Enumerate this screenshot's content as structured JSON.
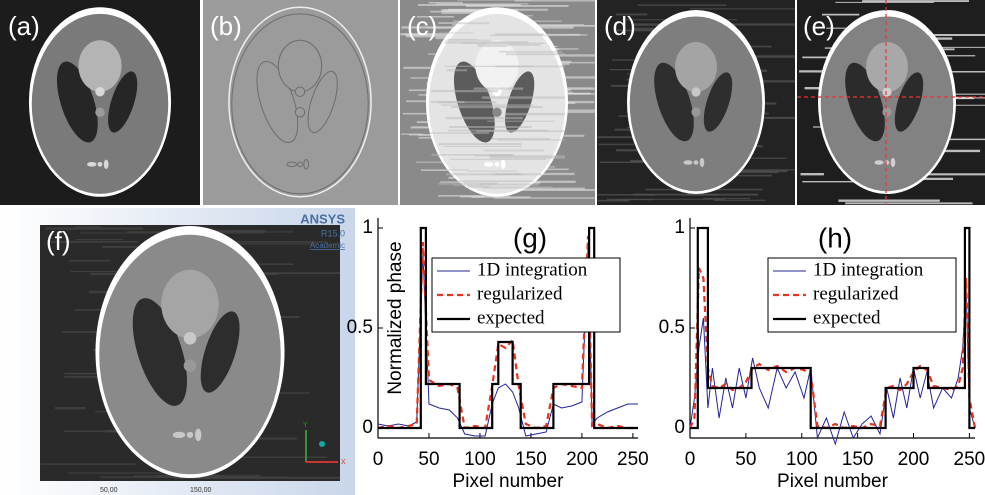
{
  "panels": [
    {
      "label": "(a)"
    },
    {
      "label": "(b)"
    },
    {
      "label": "(c)"
    },
    {
      "label": "(d)"
    },
    {
      "label": "(e)"
    },
    {
      "label": "(f)"
    }
  ],
  "panel_f": {
    "brand": "ANSYS",
    "version": "R15.0",
    "license": "Academic",
    "ruler": [
      "50,00",
      "150,00"
    ],
    "axes": [
      "Y",
      "X"
    ]
  },
  "chart_data": [
    {
      "type": "line",
      "title": "(g)",
      "xlabel": "Pixel number",
      "ylabel": "Normalized phase",
      "xlim": [
        0,
        255
      ],
      "ylim": [
        -0.05,
        1.05
      ],
      "xticks": [
        0,
        50,
        100,
        150,
        200,
        250
      ],
      "yticks": [
        0,
        0.5,
        1
      ],
      "legend": "upper center",
      "series": [
        {
          "name": "1D integration",
          "color": "#23239b",
          "style": "solid",
          "x": [
            0,
            10,
            20,
            30,
            38,
            44,
            50,
            60,
            70,
            78,
            85,
            95,
            105,
            112,
            118,
            125,
            132,
            138,
            145,
            155,
            165,
            172,
            180,
            190,
            200,
            206,
            210,
            215,
            225,
            235,
            245,
            255
          ],
          "values": [
            0.02,
            0.01,
            0.02,
            0.01,
            0.03,
            0.88,
            0.12,
            0.1,
            0.09,
            0.05,
            -0.03,
            -0.04,
            -0.04,
            0.12,
            0.2,
            0.22,
            0.18,
            0.1,
            -0.04,
            -0.03,
            -0.02,
            0.12,
            0.1,
            0.11,
            0.13,
            0.9,
            0.02,
            0.05,
            0.08,
            0.1,
            0.12,
            0.12
          ]
        },
        {
          "name": "regularized",
          "color": "#e8321e",
          "style": "dashed",
          "x": [
            0,
            10,
            20,
            30,
            38,
            44,
            50,
            60,
            70,
            78,
            85,
            95,
            105,
            112,
            118,
            125,
            132,
            138,
            145,
            155,
            165,
            172,
            180,
            190,
            200,
            206,
            210,
            215,
            225,
            235,
            245,
            255
          ],
          "values": [
            0,
            0.01,
            0,
            0.01,
            0.02,
            0.93,
            0.24,
            0.21,
            0.22,
            0.2,
            0,
            0.01,
            0,
            0.21,
            0.42,
            0.4,
            0.44,
            0.21,
            0.02,
            0,
            0.01,
            0.2,
            0.22,
            0.21,
            0.2,
            0.96,
            0.01,
            0.02,
            0,
            0.01,
            0,
            0
          ]
        },
        {
          "name": "expected",
          "color": "#000000",
          "style": "solid",
          "x": [
            0,
            42,
            42,
            47,
            47,
            80,
            80,
            112,
            112,
            118,
            118,
            132,
            132,
            140,
            140,
            172,
            172,
            207,
            207,
            212,
            212,
            255
          ],
          "values": [
            0,
            0,
            1,
            1,
            0.22,
            0.22,
            0,
            0,
            0.22,
            0.22,
            0.43,
            0.43,
            0.22,
            0.22,
            0,
            0,
            0.22,
            0.22,
            1,
            1,
            0,
            0
          ]
        }
      ]
    },
    {
      "type": "line",
      "title": "(h)",
      "xlabel": "Pixel number",
      "xlim": [
        0,
        255
      ],
      "ylim": [
        -0.05,
        1.05
      ],
      "xticks": [
        0,
        50,
        100,
        150,
        200,
        250
      ],
      "yticks": [
        0,
        0.5,
        1
      ],
      "legend": "upper center",
      "series": [
        {
          "name": "1D integration",
          "color": "#23239b",
          "style": "solid",
          "x": [
            0,
            4,
            8,
            12,
            16,
            20,
            26,
            32,
            38,
            44,
            50,
            56,
            62,
            70,
            78,
            86,
            94,
            102,
            108,
            114,
            122,
            130,
            138,
            146,
            154,
            162,
            170,
            176,
            182,
            188,
            194,
            200,
            206,
            212,
            218,
            226,
            234,
            240,
            244,
            247,
            250,
            255
          ],
          "values": [
            0,
            0.15,
            0.4,
            0.55,
            0.1,
            0.3,
            0.05,
            0.25,
            0.1,
            0.3,
            0.15,
            0.35,
            0.2,
            0.1,
            0.3,
            0.2,
            0.28,
            0.15,
            0.3,
            -0.05,
            0.05,
            -0.08,
            0.08,
            -0.05,
            0.02,
            0.06,
            -0.03,
            0.2,
            0.05,
            0.25,
            0.1,
            0.3,
            0.15,
            0.28,
            0.1,
            0.2,
            0.15,
            0.25,
            0.4,
            0.7,
            0.1,
            0
          ]
        },
        {
          "name": "regularized",
          "color": "#e8321e",
          "style": "dashed",
          "x": [
            0,
            4,
            8,
            12,
            16,
            20,
            26,
            32,
            38,
            44,
            50,
            56,
            62,
            70,
            78,
            86,
            94,
            102,
            108,
            114,
            122,
            130,
            138,
            146,
            154,
            162,
            170,
            176,
            182,
            188,
            194,
            200,
            206,
            212,
            218,
            226,
            234,
            240,
            244,
            247,
            250,
            255
          ],
          "values": [
            0,
            0.05,
            0.8,
            0.75,
            0.3,
            0.21,
            0.2,
            0.22,
            0.19,
            0.2,
            0.23,
            0.3,
            0.32,
            0.29,
            0.31,
            0.28,
            0.3,
            0.29,
            0.27,
            0.01,
            0,
            0.02,
            0,
            0.01,
            0,
            0.02,
            0.01,
            0.2,
            0.21,
            0.19,
            0.22,
            0.28,
            0.31,
            0.29,
            0.21,
            0.2,
            0.19,
            0.21,
            0.3,
            0.75,
            0.15,
            0
          ]
        },
        {
          "name": "expected",
          "color": "#000000",
          "style": "solid",
          "x": [
            0,
            7,
            7,
            16,
            16,
            55,
            55,
            108,
            108,
            175,
            175,
            200,
            200,
            213,
            213,
            246,
            246,
            250,
            250,
            255
          ],
          "values": [
            0,
            0,
            1,
            1,
            0.2,
            0.2,
            0.3,
            0.3,
            0,
            0,
            0.2,
            0.2,
            0.3,
            0.3,
            0.2,
            0.2,
            1,
            1,
            0,
            0
          ]
        }
      ]
    }
  ]
}
